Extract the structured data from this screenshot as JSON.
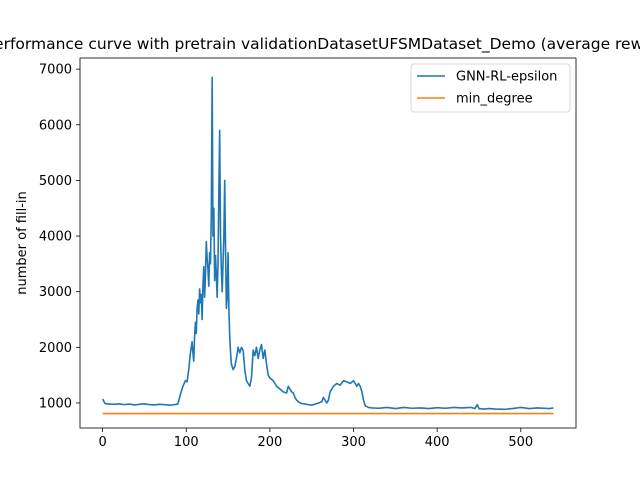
{
  "chart_data": {
    "type": "line",
    "title": "Performance curve with pretrain validationDatasetUFSMDataset_Demo (average reward)",
    "xlabel": "",
    "ylabel": "number of fill-in",
    "xlim": [
      -27,
      566
    ],
    "ylim": [
      550,
      7200
    ],
    "xticks": [
      0,
      100,
      200,
      300,
      400,
      500
    ],
    "yticks": [
      1000,
      2000,
      3000,
      4000,
      5000,
      6000,
      7000
    ],
    "grid": false,
    "legend_position": "upper-right",
    "series": [
      {
        "name": "GNN-RL-epsilon",
        "color": "#1f77b4",
        "points": [
          [
            0,
            1070
          ],
          [
            3,
            990
          ],
          [
            8,
            980
          ],
          [
            14,
            975
          ],
          [
            20,
            985
          ],
          [
            26,
            970
          ],
          [
            32,
            980
          ],
          [
            38,
            965
          ],
          [
            44,
            975
          ],
          [
            50,
            985
          ],
          [
            56,
            970
          ],
          [
            62,
            965
          ],
          [
            68,
            975
          ],
          [
            74,
            970
          ],
          [
            80,
            960
          ],
          [
            86,
            970
          ],
          [
            90,
            980
          ],
          [
            93,
            1150
          ],
          [
            96,
            1300
          ],
          [
            99,
            1400
          ],
          [
            101,
            1380
          ],
          [
            103,
            1600
          ],
          [
            105,
            1900
          ],
          [
            107,
            2100
          ],
          [
            108,
            1900
          ],
          [
            109,
            1750
          ],
          [
            110,
            2200
          ],
          [
            111,
            2450
          ],
          [
            112,
            2250
          ],
          [
            113,
            2700
          ],
          [
            114,
            2850
          ],
          [
            115,
            2600
          ],
          [
            116,
            3050
          ],
          [
            117,
            2800
          ],
          [
            118,
            2950
          ],
          [
            119,
            2500
          ],
          [
            120,
            3100
          ],
          [
            121,
            3450
          ],
          [
            122,
            2900
          ],
          [
            123,
            3300
          ],
          [
            124,
            3900
          ],
          [
            125,
            3600
          ],
          [
            126,
            3400
          ],
          [
            127,
            3100
          ],
          [
            128,
            3700
          ],
          [
            129,
            3500
          ],
          [
            130,
            4400
          ],
          [
            131,
            6850
          ],
          [
            132,
            4000
          ],
          [
            133,
            4500
          ],
          [
            134,
            3200
          ],
          [
            135,
            3650
          ],
          [
            136,
            3300
          ],
          [
            137,
            2900
          ],
          [
            138,
            3500
          ],
          [
            139,
            4800
          ],
          [
            140,
            5900
          ],
          [
            141,
            4000
          ],
          [
            142,
            3400
          ],
          [
            143,
            3000
          ],
          [
            144,
            3500
          ],
          [
            145,
            4000
          ],
          [
            146,
            5000
          ],
          [
            147,
            3800
          ],
          [
            148,
            2700
          ],
          [
            149,
            2900
          ],
          [
            150,
            3700
          ],
          [
            151,
            2700
          ],
          [
            152,
            2200
          ],
          [
            153,
            1900
          ],
          [
            154,
            1700
          ],
          [
            156,
            1600
          ],
          [
            158,
            1650
          ],
          [
            160,
            1800
          ],
          [
            162,
            2000
          ],
          [
            164,
            1900
          ],
          [
            166,
            2000
          ],
          [
            168,
            1950
          ],
          [
            170,
            1600
          ],
          [
            172,
            1400
          ],
          [
            174,
            1350
          ],
          [
            176,
            1300
          ],
          [
            178,
            1450
          ],
          [
            180,
            1950
          ],
          [
            182,
            1850
          ],
          [
            184,
            2000
          ],
          [
            186,
            1800
          ],
          [
            188,
            1950
          ],
          [
            190,
            2050
          ],
          [
            192,
            1800
          ],
          [
            194,
            1950
          ],
          [
            196,
            1700
          ],
          [
            198,
            1500
          ],
          [
            200,
            1450
          ],
          [
            204,
            1400
          ],
          [
            208,
            1300
          ],
          [
            212,
            1250
          ],
          [
            216,
            1200
          ],
          [
            220,
            1180
          ],
          [
            222,
            1300
          ],
          [
            224,
            1250
          ],
          [
            226,
            1200
          ],
          [
            228,
            1180
          ],
          [
            230,
            1100
          ],
          [
            232,
            1050
          ],
          [
            234,
            1020
          ],
          [
            238,
            990
          ],
          [
            242,
            980
          ],
          [
            246,
            970
          ],
          [
            250,
            960
          ],
          [
            254,
            980
          ],
          [
            258,
            1000
          ],
          [
            262,
            1020
          ],
          [
            264,
            1100
          ],
          [
            266,
            1050
          ],
          [
            268,
            1000
          ],
          [
            270,
            1050
          ],
          [
            272,
            1200
          ],
          [
            276,
            1300
          ],
          [
            280,
            1350
          ],
          [
            284,
            1320
          ],
          [
            288,
            1400
          ],
          [
            292,
            1380
          ],
          [
            296,
            1350
          ],
          [
            300,
            1400
          ],
          [
            304,
            1300
          ],
          [
            306,
            1350
          ],
          [
            308,
            1300
          ],
          [
            310,
            1200
          ],
          [
            312,
            1050
          ],
          [
            314,
            950
          ],
          [
            318,
            920
          ],
          [
            322,
            910
          ],
          [
            330,
            905
          ],
          [
            340,
            920
          ],
          [
            350,
            900
          ],
          [
            360,
            920
          ],
          [
            370,
            905
          ],
          [
            380,
            910
          ],
          [
            390,
            900
          ],
          [
            400,
            915
          ],
          [
            410,
            905
          ],
          [
            420,
            920
          ],
          [
            430,
            910
          ],
          [
            440,
            920
          ],
          [
            445,
            900
          ],
          [
            448,
            970
          ],
          [
            450,
            900
          ],
          [
            456,
            890
          ],
          [
            462,
            900
          ],
          [
            470,
            890
          ],
          [
            480,
            885
          ],
          [
            490,
            900
          ],
          [
            500,
            920
          ],
          [
            510,
            900
          ],
          [
            520,
            910
          ],
          [
            528,
            905
          ],
          [
            534,
            900
          ],
          [
            539,
            910
          ]
        ]
      },
      {
        "name": "min_degree",
        "color": "#ff7f0e",
        "points": [
          [
            0,
            810
          ],
          [
            539,
            810
          ]
        ]
      }
    ]
  }
}
